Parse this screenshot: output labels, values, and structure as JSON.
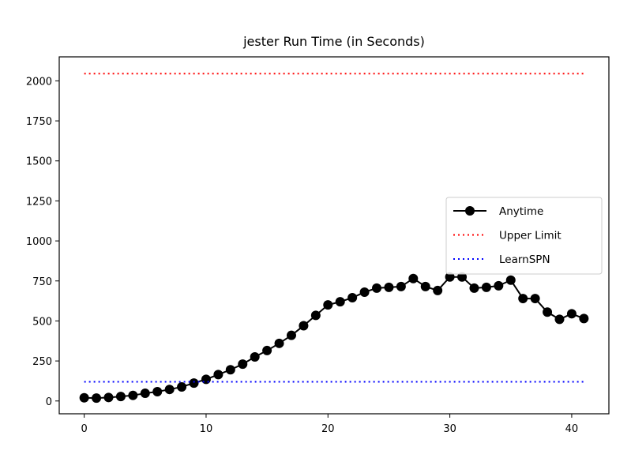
{
  "chart_data": {
    "type": "line",
    "title": "jester Run Time (in Seconds)",
    "xlabel": "",
    "ylabel": "",
    "xlim": [
      -2.05,
      43.05
    ],
    "ylim": [
      -80,
      2150
    ],
    "xticks": [
      0,
      10,
      20,
      30,
      40
    ],
    "yticks": [
      0,
      250,
      500,
      750,
      1000,
      1250,
      1500,
      1750,
      2000
    ],
    "grid": false,
    "legend_position": "center-right",
    "series": [
      {
        "name": "Anytime",
        "color": "#000000",
        "style": "solid-marker",
        "x": [
          0,
          1,
          2,
          3,
          4,
          5,
          6,
          7,
          8,
          9,
          10,
          11,
          12,
          13,
          14,
          15,
          16,
          17,
          18,
          19,
          20,
          21,
          22,
          23,
          24,
          25,
          26,
          27,
          28,
          29,
          30,
          31,
          32,
          33,
          34,
          35,
          36,
          37,
          38,
          39,
          40,
          41
        ],
        "y": [
          20,
          18,
          22,
          28,
          35,
          48,
          58,
          72,
          88,
          112,
          135,
          165,
          195,
          230,
          275,
          315,
          360,
          410,
          470,
          535,
          600,
          620,
          645,
          680,
          705,
          710,
          715,
          765,
          715,
          690,
          775,
          775,
          705,
          710,
          720,
          755,
          640,
          640,
          555,
          510,
          545,
          515
        ]
      },
      {
        "name": "Upper Limit",
        "color": "#ff0000",
        "style": "dotted",
        "x": [
          0,
          41
        ],
        "y": [
          2045,
          2045
        ]
      },
      {
        "name": "LearnSPN",
        "color": "#0000ff",
        "style": "dotted",
        "x": [
          0,
          41
        ],
        "y": [
          120,
          120
        ]
      }
    ]
  }
}
